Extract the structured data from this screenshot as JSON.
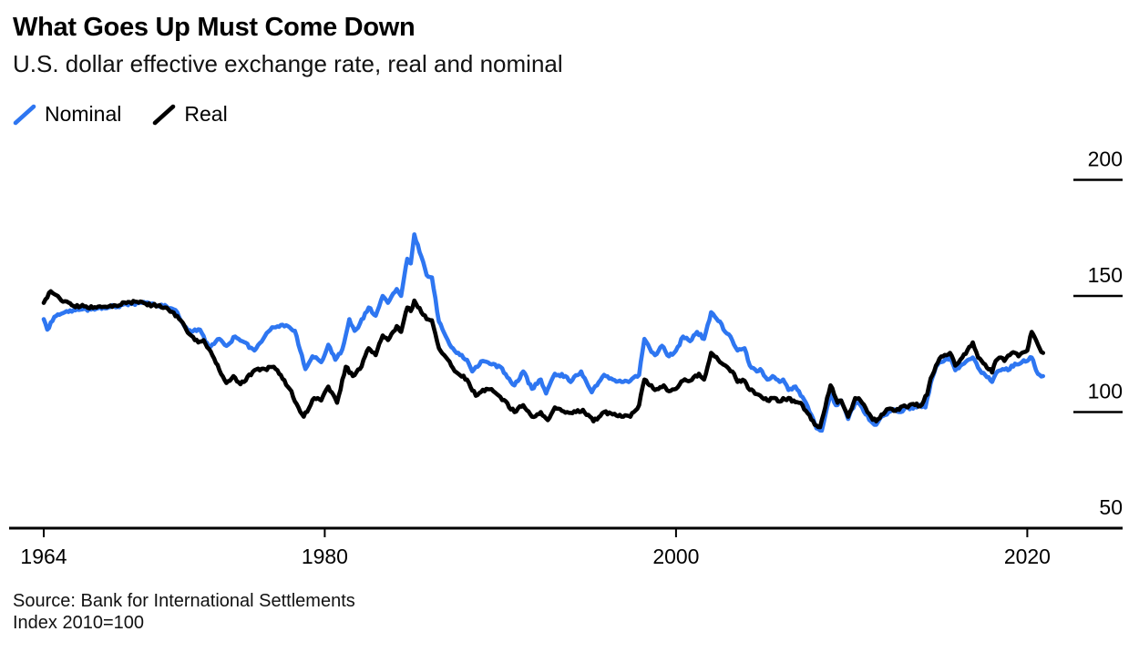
{
  "header": {
    "title": "What Goes Up Must Come Down",
    "subtitle": "U.S. dollar effective exchange rate, real and nominal"
  },
  "legend": {
    "items": [
      {
        "label": "Nominal",
        "color": "#2e76f1"
      },
      {
        "label": "Real",
        "color": "#000000"
      }
    ]
  },
  "footer": {
    "source_line": "Source: Bank for International Settlements",
    "note_line": "Index 2010=100"
  },
  "chart_data": {
    "type": "line",
    "title": "What Goes Up Must Come Down",
    "subtitle": "U.S. dollar effective exchange rate, real and nominal",
    "note": "Index 2010=100",
    "source": "Bank for International Settlements",
    "legend_position": "top-left",
    "grid": false,
    "x_axis": {
      "ticks": [
        1964,
        1980,
        2000,
        2020
      ],
      "range": [
        1964,
        2021
      ]
    },
    "y_axis": {
      "ticks": [
        50,
        100,
        150,
        200
      ],
      "range": [
        50,
        200
      ],
      "side": "right"
    },
    "series": [
      {
        "name": "Nominal",
        "color": "#2e76f1",
        "points": [
          [
            1964.0,
            140
          ],
          [
            1964.2,
            135.5
          ],
          [
            1964.6,
            141
          ],
          [
            1965.2,
            143
          ],
          [
            1966.0,
            144
          ],
          [
            1967.0,
            144.5
          ],
          [
            1968.0,
            145.5
          ],
          [
            1969.0,
            146.5
          ],
          [
            1969.6,
            147
          ],
          [
            1970.3,
            146
          ],
          [
            1971.0,
            145.5
          ],
          [
            1971.6,
            143
          ],
          [
            1972.0,
            137
          ],
          [
            1972.4,
            134.5
          ],
          [
            1972.9,
            135.5
          ],
          [
            1973.4,
            127.5
          ],
          [
            1974.0,
            131.5
          ],
          [
            1974.4,
            128.5
          ],
          [
            1974.9,
            132.5
          ],
          [
            1975.3,
            130.5
          ],
          [
            1976.0,
            126.5
          ],
          [
            1976.5,
            131.5
          ],
          [
            1977.0,
            136.5
          ],
          [
            1977.5,
            137.5
          ],
          [
            1978.0,
            136.5
          ],
          [
            1978.3,
            135
          ],
          [
            1978.9,
            118.5
          ],
          [
            1979.3,
            124
          ],
          [
            1979.8,
            121.5
          ],
          [
            1980.2,
            129
          ],
          [
            1980.6,
            122.5
          ],
          [
            1981.0,
            127
          ],
          [
            1981.4,
            140
          ],
          [
            1981.7,
            135
          ],
          [
            1982.0,
            138
          ],
          [
            1982.5,
            145
          ],
          [
            1982.9,
            141.5
          ],
          [
            1983.3,
            150
          ],
          [
            1983.6,
            147
          ],
          [
            1984.1,
            153
          ],
          [
            1984.35,
            150
          ],
          [
            1984.7,
            166
          ],
          [
            1984.9,
            164
          ],
          [
            1985.1,
            176.5
          ],
          [
            1985.5,
            167
          ],
          [
            1985.8,
            159
          ],
          [
            1986.1,
            158
          ],
          [
            1986.5,
            139
          ],
          [
            1986.8,
            134
          ],
          [
            1987.2,
            128
          ],
          [
            1987.7,
            124.5
          ],
          [
            1988.1,
            122.5
          ],
          [
            1988.4,
            117.5
          ],
          [
            1989.0,
            122
          ],
          [
            1989.5,
            120.5
          ],
          [
            1990.0,
            119.5
          ],
          [
            1990.8,
            111.5
          ],
          [
            1991.3,
            117.5
          ],
          [
            1991.8,
            110
          ],
          [
            1992.3,
            114
          ],
          [
            1992.6,
            108
          ],
          [
            1993.1,
            116.5
          ],
          [
            1993.7,
            115.5
          ],
          [
            1994.0,
            113
          ],
          [
            1994.6,
            117.5
          ],
          [
            1995.2,
            108.5
          ],
          [
            1995.9,
            116
          ],
          [
            1996.4,
            114
          ],
          [
            1996.9,
            113
          ],
          [
            1997.4,
            113.5
          ],
          [
            1997.9,
            116
          ],
          [
            1998.2,
            131.5
          ],
          [
            1998.5,
            127.5
          ],
          [
            1998.8,
            124.5
          ],
          [
            1999.2,
            128.5
          ],
          [
            1999.6,
            124
          ],
          [
            2000.0,
            126.5
          ],
          [
            2000.4,
            132.5
          ],
          [
            2000.8,
            130.5
          ],
          [
            2001.2,
            134.5
          ],
          [
            2001.6,
            131.5
          ],
          [
            2002.0,
            143
          ],
          [
            2002.5,
            139
          ],
          [
            2002.8,
            134.5
          ],
          [
            2003.1,
            132.5
          ],
          [
            2003.5,
            126.5
          ],
          [
            2003.9,
            127.5
          ],
          [
            2004.2,
            120
          ],
          [
            2004.6,
            117.5
          ],
          [
            2004.8,
            118.5
          ],
          [
            2005.2,
            114
          ],
          [
            2005.5,
            115.5
          ],
          [
            2005.9,
            113
          ],
          [
            2006.1,
            114
          ],
          [
            2006.4,
            109.5
          ],
          [
            2006.8,
            111
          ],
          [
            2007.1,
            107
          ],
          [
            2007.4,
            104
          ],
          [
            2008.0,
            93
          ],
          [
            2008.3,
            92
          ],
          [
            2008.8,
            108.5
          ],
          [
            2009.1,
            103
          ],
          [
            2009.4,
            105
          ],
          [
            2009.8,
            97
          ],
          [
            2010.2,
            104
          ],
          [
            2010.5,
            103
          ],
          [
            2011.1,
            96
          ],
          [
            2011.4,
            94.5
          ],
          [
            2011.7,
            98
          ],
          [
            2012.1,
            100
          ],
          [
            2012.5,
            101
          ],
          [
            2012.8,
            100
          ],
          [
            2013.1,
            102
          ],
          [
            2013.5,
            101.5
          ],
          [
            2013.8,
            103
          ],
          [
            2014.2,
            102
          ],
          [
            2014.5,
            112.5
          ],
          [
            2014.8,
            119.5
          ],
          [
            2015.0,
            121.5
          ],
          [
            2015.6,
            123.5
          ],
          [
            2015.9,
            118
          ],
          [
            2016.3,
            120.5
          ],
          [
            2016.9,
            123.5
          ],
          [
            2017.3,
            118
          ],
          [
            2017.6,
            116
          ],
          [
            2018.0,
            113
          ],
          [
            2018.3,
            117.5
          ],
          [
            2018.6,
            118.5
          ],
          [
            2018.9,
            118
          ],
          [
            2019.1,
            120
          ],
          [
            2019.4,
            120.5
          ],
          [
            2019.7,
            121.5
          ],
          [
            2020.0,
            122
          ],
          [
            2020.25,
            123.5
          ],
          [
            2020.5,
            118
          ],
          [
            2020.7,
            116
          ],
          [
            2020.9,
            115.5
          ]
        ]
      },
      {
        "name": "Real",
        "color": "#000000",
        "points": [
          [
            1964.0,
            147
          ],
          [
            1964.4,
            152
          ],
          [
            1965.0,
            148
          ],
          [
            1965.6,
            146
          ],
          [
            1966.3,
            145.5
          ],
          [
            1967.0,
            145
          ],
          [
            1968.0,
            146
          ],
          [
            1969.3,
            147.5
          ],
          [
            1970.2,
            146
          ],
          [
            1971.0,
            145
          ],
          [
            1971.8,
            139.5
          ],
          [
            1972.3,
            133.5
          ],
          [
            1972.8,
            130
          ],
          [
            1973.1,
            131
          ],
          [
            1973.6,
            124.5
          ],
          [
            1974.0,
            118
          ],
          [
            1974.4,
            112.5
          ],
          [
            1974.8,
            115.5
          ],
          [
            1975.2,
            112
          ],
          [
            1976.0,
            118
          ],
          [
            1976.6,
            118.5
          ],
          [
            1977.1,
            119.5
          ],
          [
            1978.0,
            110
          ],
          [
            1978.5,
            102
          ],
          [
            1978.8,
            98
          ],
          [
            1979.4,
            106
          ],
          [
            1979.8,
            105
          ],
          [
            1980.2,
            111
          ],
          [
            1980.7,
            104
          ],
          [
            1981.2,
            119.5
          ],
          [
            1981.6,
            115.5
          ],
          [
            1982.0,
            118.5
          ],
          [
            1982.5,
            127.5
          ],
          [
            1982.9,
            124.5
          ],
          [
            1983.3,
            133
          ],
          [
            1983.6,
            131
          ],
          [
            1984.1,
            137
          ],
          [
            1984.35,
            134.5
          ],
          [
            1984.7,
            145
          ],
          [
            1984.9,
            143.5
          ],
          [
            1985.1,
            148
          ],
          [
            1985.5,
            143
          ],
          [
            1985.8,
            140
          ],
          [
            1986.1,
            139.5
          ],
          [
            1986.5,
            127.5
          ],
          [
            1986.8,
            124.5
          ],
          [
            1987.2,
            120
          ],
          [
            1987.6,
            116.5
          ],
          [
            1988.1,
            114
          ],
          [
            1988.6,
            107
          ],
          [
            1989.2,
            110
          ],
          [
            1989.6,
            109
          ],
          [
            1990.0,
            106.5
          ],
          [
            1990.8,
            100
          ],
          [
            1991.3,
            103
          ],
          [
            1991.8,
            98
          ],
          [
            1992.3,
            100
          ],
          [
            1992.7,
            96.5
          ],
          [
            1993.1,
            102
          ],
          [
            1993.8,
            100
          ],
          [
            1994.3,
            100
          ],
          [
            1994.7,
            101
          ],
          [
            1995.3,
            96
          ],
          [
            1995.9,
            100
          ],
          [
            1996.4,
            99
          ],
          [
            1996.9,
            98
          ],
          [
            1997.4,
            98
          ],
          [
            1997.9,
            103
          ],
          [
            1998.2,
            114
          ],
          [
            1998.8,
            109.5
          ],
          [
            1999.3,
            111.5
          ],
          [
            1999.6,
            109
          ],
          [
            2000.0,
            110
          ],
          [
            2000.4,
            113.5
          ],
          [
            2000.8,
            113.5
          ],
          [
            2001.3,
            116.5
          ],
          [
            2001.6,
            114
          ],
          [
            2002.0,
            125.5
          ],
          [
            2002.5,
            121.5
          ],
          [
            2002.9,
            119.5
          ],
          [
            2003.2,
            117.5
          ],
          [
            2003.5,
            113
          ],
          [
            2003.9,
            113.5
          ],
          [
            2004.2,
            109.5
          ],
          [
            2004.7,
            107.5
          ],
          [
            2005.2,
            105
          ],
          [
            2005.5,
            106
          ],
          [
            2005.9,
            104.5
          ],
          [
            2006.1,
            106
          ],
          [
            2006.7,
            105
          ],
          [
            2007.2,
            103
          ],
          [
            2007.9,
            94.5
          ],
          [
            2008.2,
            93.5
          ],
          [
            2008.8,
            111.5
          ],
          [
            2009.2,
            104
          ],
          [
            2009.4,
            105
          ],
          [
            2009.8,
            98
          ],
          [
            2010.2,
            106
          ],
          [
            2010.5,
            105
          ],
          [
            2011.1,
            98
          ],
          [
            2011.4,
            96
          ],
          [
            2011.9,
            100
          ],
          [
            2012.2,
            101.5
          ],
          [
            2012.5,
            100.5
          ],
          [
            2012.9,
            102.5
          ],
          [
            2013.2,
            102
          ],
          [
            2013.5,
            103.5
          ],
          [
            2013.9,
            102.5
          ],
          [
            2014.3,
            107.5
          ],
          [
            2014.5,
            114.5
          ],
          [
            2014.8,
            120
          ],
          [
            2015.0,
            123
          ],
          [
            2015.6,
            125.5
          ],
          [
            2015.9,
            120
          ],
          [
            2016.3,
            123.5
          ],
          [
            2016.9,
            130
          ],
          [
            2017.2,
            123.5
          ],
          [
            2017.6,
            120.5
          ],
          [
            2018.0,
            117
          ],
          [
            2018.2,
            122
          ],
          [
            2018.5,
            123.5
          ],
          [
            2018.7,
            122
          ],
          [
            2019.0,
            124.5
          ],
          [
            2019.3,
            125.5
          ],
          [
            2019.5,
            124
          ],
          [
            2019.7,
            125.5
          ],
          [
            2020.0,
            126.5
          ],
          [
            2020.25,
            134.5
          ],
          [
            2020.5,
            131
          ],
          [
            2020.7,
            127.5
          ],
          [
            2020.9,
            125.5
          ]
        ]
      }
    ]
  }
}
